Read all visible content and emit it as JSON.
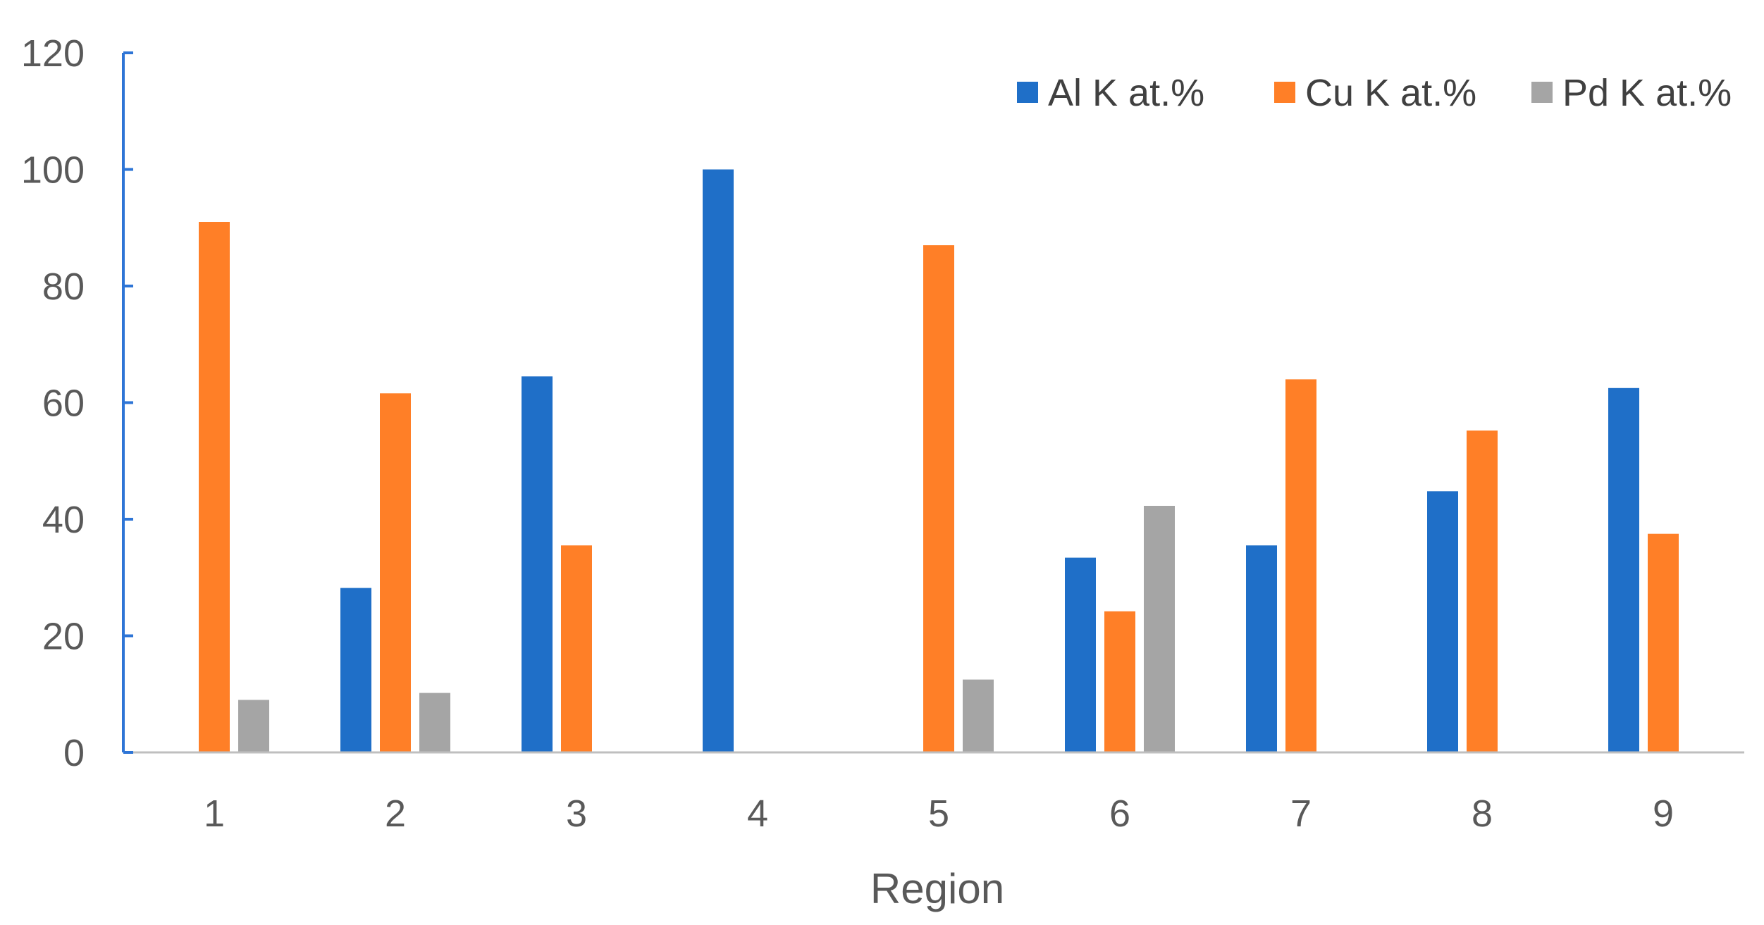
{
  "chart_data": {
    "type": "bar",
    "title": "",
    "xlabel": "Region",
    "ylabel": "",
    "categories": [
      "1",
      "2",
      "3",
      "4",
      "5",
      "6",
      "7",
      "8",
      "9"
    ],
    "ylim": [
      0,
      120
    ],
    "yticks": [
      0,
      20,
      40,
      60,
      80,
      100,
      120
    ],
    "grid": false,
    "legend_position": "top-right",
    "series": [
      {
        "name": "Al K at.%",
        "color": "#1f6fc8",
        "values": [
          0,
          28.2,
          64.5,
          100,
          0,
          33.4,
          35.5,
          44.8,
          62.5
        ]
      },
      {
        "name": "Cu K at.%",
        "color": "#ff7f27",
        "values": [
          91,
          61.6,
          35.5,
          0,
          87,
          24.2,
          64,
          55.2,
          37.5
        ]
      },
      {
        "name": "Pd K at.%",
        "color": "#a5a5a5",
        "values": [
          9,
          10.2,
          0,
          0,
          12.5,
          42.3,
          0,
          0,
          0
        ]
      }
    ],
    "axis_color": "#2e75d6"
  }
}
